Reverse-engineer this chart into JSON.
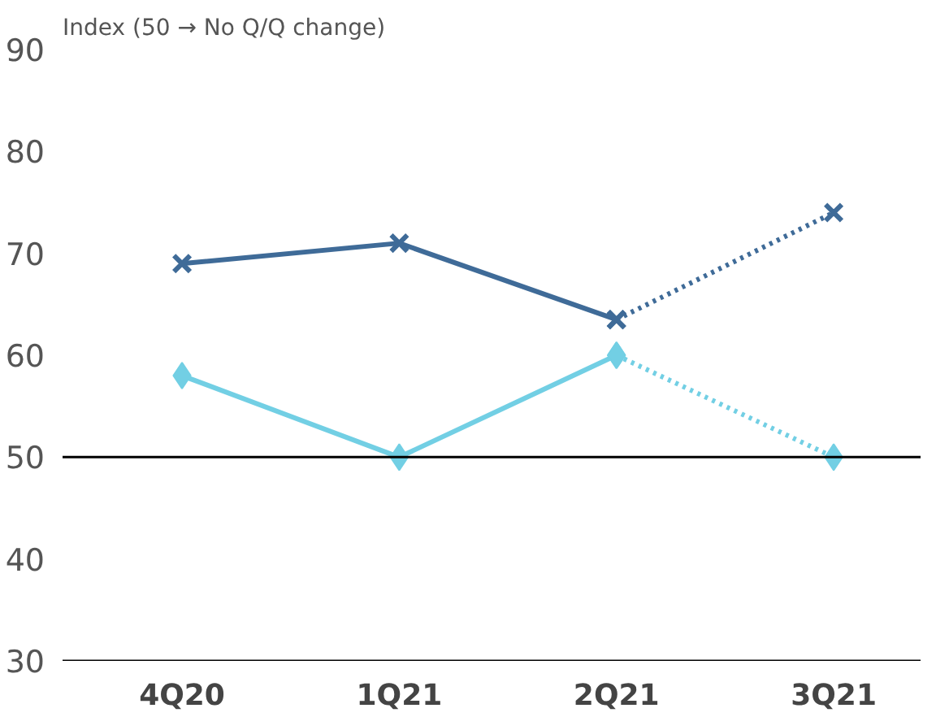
{
  "chart_data": {
    "type": "line",
    "ylabel": "Index (50 → No Q/Q change)",
    "categories": [
      "4Q20",
      "1Q21",
      "2Q21",
      "3Q21"
    ],
    "series": [
      {
        "color": "#3f6b98",
        "values": [
          69,
          71,
          63.5,
          null
        ],
        "marker": "cross",
        "line_style": "solid"
      },
      {
        "color": "#3f6b98",
        "values": [
          null,
          null,
          63.5,
          74
        ],
        "marker": "cross",
        "line_style": "dotted"
      },
      {
        "color": "#72cfe4",
        "values": [
          58,
          50,
          60,
          null
        ],
        "marker": "diamond",
        "line_style": "solid"
      },
      {
        "color": "#72cfe4",
        "values": [
          null,
          null,
          60,
          50
        ],
        "marker": "diamond",
        "line_style": "dotted"
      }
    ],
    "ylim": [
      30,
      90
    ],
    "yticks": [
      30,
      40,
      50,
      60,
      70,
      80,
      90
    ],
    "ref_lines": [
      {
        "axis": "y",
        "value": 50,
        "color": "#000000"
      }
    ],
    "grid": false
  }
}
